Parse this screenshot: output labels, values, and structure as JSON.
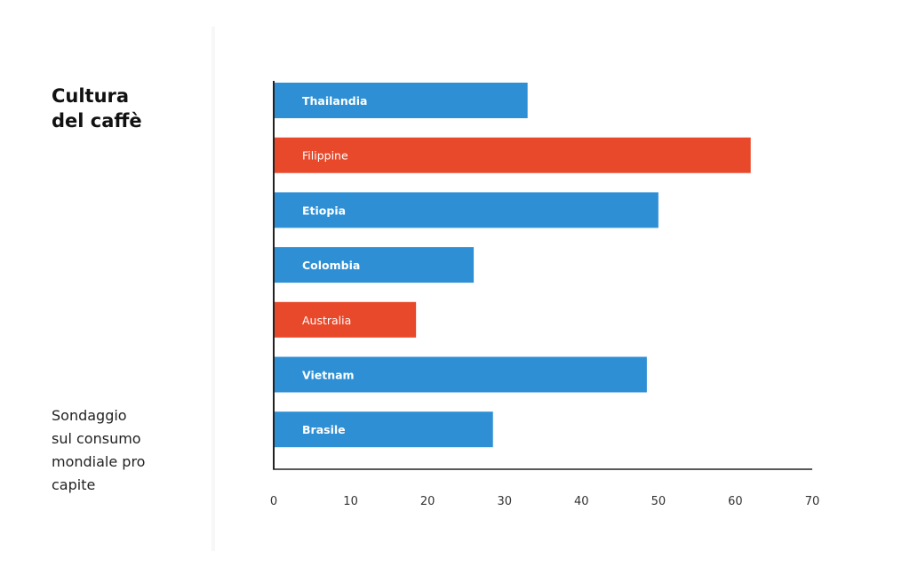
{
  "title": "Cultura\ndel caffè",
  "subtitle": "Sondaggio\nsul consumo\nmondiale pro\ncapite",
  "colors": {
    "blue": "#2e8fd4",
    "red": "#e8492b",
    "axis": "#222222",
    "tick_text": "#333333",
    "bar_label": "#ffffff"
  },
  "chart_data": {
    "type": "bar",
    "orientation": "horizontal",
    "categories": [
      "Thailandia",
      "Filippine",
      "Etiopia",
      "Colombia",
      "Australia",
      "Vietnam",
      "Brasile"
    ],
    "values": [
      33,
      62,
      50,
      26,
      18.5,
      48.5,
      28.5
    ],
    "bar_colors": [
      "blue",
      "red",
      "blue",
      "blue",
      "red",
      "blue",
      "blue"
    ],
    "xlim": [
      0,
      70
    ],
    "xticks": [
      0,
      10,
      20,
      30,
      40,
      50,
      60,
      70
    ],
    "xlabel": "",
    "ylabel": "",
    "grid": false,
    "legend": "none",
    "category_labels_inside_bars": true
  }
}
